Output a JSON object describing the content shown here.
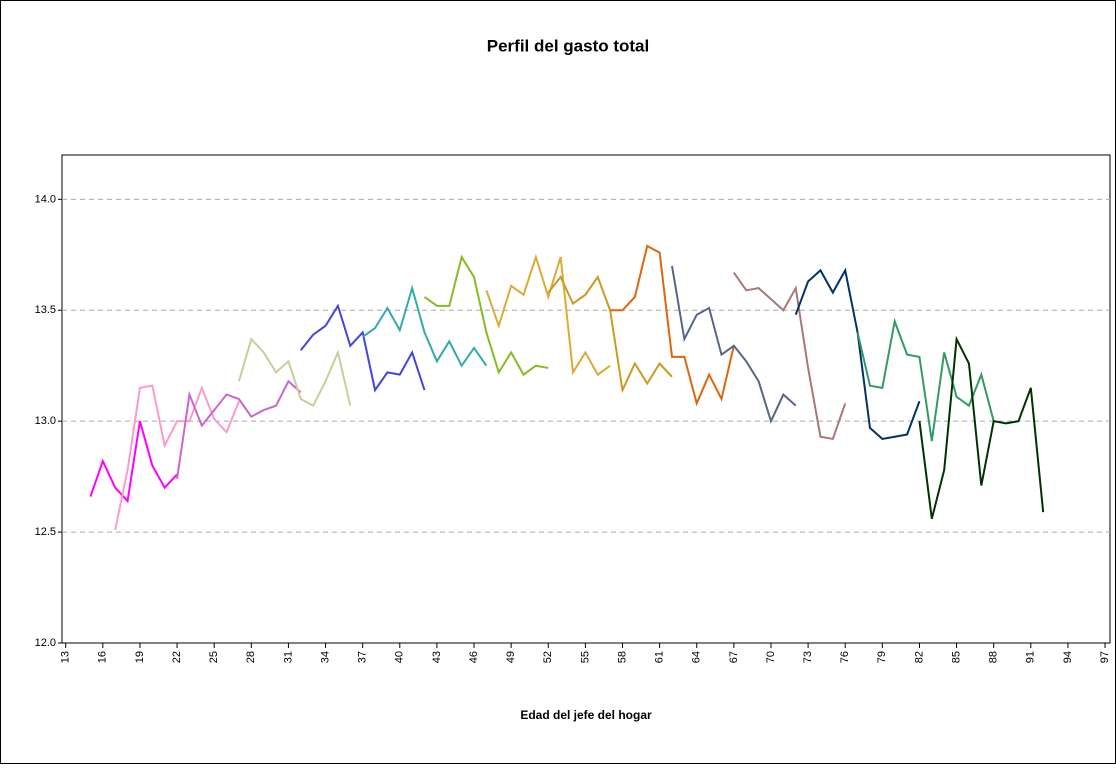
{
  "chart_data": {
    "type": "line",
    "title": "Perfil del gasto total",
    "x_label": "Edad del jefe del hogar",
    "xlim": [
      12.7,
      97.4
    ],
    "xticks": [
      13,
      16,
      19,
      22,
      25,
      28,
      31,
      34,
      37,
      40,
      43,
      46,
      49,
      52,
      55,
      58,
      61,
      64,
      67,
      70,
      73,
      76,
      79,
      82,
      85,
      88,
      91,
      94,
      97
    ],
    "ylim": [
      12.0,
      14.2
    ],
    "yticks": [
      {
        "value": 12,
        "label": "12.0"
      },
      {
        "value": 12.5,
        "label": "12.5"
      },
      {
        "value": 13,
        "label": "13.0"
      },
      {
        "value": 13.5,
        "label": "13.5"
      },
      {
        "value": 14,
        "label": "14.0"
      }
    ],
    "grid": true,
    "series": [
      {
        "color": "#ff00ff",
        "x": [
          15,
          16,
          17,
          18,
          19,
          20,
          21,
          22
        ],
        "values": [
          12.66,
          12.82,
          12.7,
          12.64,
          13.0,
          12.8,
          12.7,
          12.76
        ]
      },
      {
        "color": "#ff99cc",
        "x": [
          17,
          18,
          19,
          20,
          21,
          22,
          23,
          24,
          25,
          26,
          27
        ],
        "values": [
          12.51,
          12.78,
          13.15,
          13.16,
          12.89,
          13.0,
          13.0,
          13.15,
          13.01,
          12.95,
          13.09
        ]
      },
      {
        "color": "#cc66cc",
        "x": [
          22,
          23,
          24,
          25,
          26,
          27,
          28,
          29,
          30,
          31,
          32
        ],
        "values": [
          12.74,
          13.12,
          12.98,
          13.05,
          13.12,
          13.1,
          13.02,
          13.05,
          13.07,
          13.18,
          13.13
        ]
      },
      {
        "color": "#cccc99",
        "x": [
          27,
          28,
          29,
          30,
          31,
          32,
          33,
          34,
          35,
          36
        ],
        "values": [
          13.18,
          13.37,
          13.31,
          13.22,
          13.27,
          13.1,
          13.07,
          13.18,
          13.31,
          13.07
        ]
      },
      {
        "color": "#4444dd",
        "x": [
          32,
          33,
          34,
          35,
          36,
          37,
          38,
          39,
          40,
          41,
          42
        ],
        "values": [
          13.32,
          13.39,
          13.43,
          13.52,
          13.34,
          13.4,
          13.14,
          13.22,
          13.21,
          13.31,
          13.14
        ]
      },
      {
        "color": "#33aaaa",
        "x": [
          37,
          38,
          39,
          40,
          41,
          42,
          43,
          44,
          45,
          46,
          47
        ],
        "values": [
          13.38,
          13.42,
          13.51,
          13.41,
          13.6,
          13.4,
          13.27,
          13.36,
          13.25,
          13.33,
          13.25
        ]
      },
      {
        "color": "#88bb22",
        "x": [
          42,
          43,
          44,
          45,
          46,
          47,
          48,
          49,
          50,
          51,
          52
        ],
        "values": [
          13.56,
          13.52,
          13.52,
          13.74,
          13.65,
          13.4,
          13.22,
          13.31,
          13.21,
          13.25,
          13.24
        ]
      },
      {
        "color": "#ddaa33",
        "x": [
          47,
          48,
          49,
          50,
          51,
          52,
          53,
          54,
          55,
          56,
          57
        ],
        "values": [
          13.59,
          13.43,
          13.61,
          13.57,
          13.74,
          13.56,
          13.74,
          13.22,
          13.31,
          13.21,
          13.25
        ]
      },
      {
        "color": "#cc9922",
        "x": [
          52,
          53,
          54,
          55,
          56,
          57,
          58,
          59,
          60,
          61,
          62
        ],
        "values": [
          13.58,
          13.65,
          13.53,
          13.57,
          13.65,
          13.5,
          13.14,
          13.26,
          13.17,
          13.26,
          13.2
        ]
      },
      {
        "color": "#dd6611",
        "x": [
          57,
          58,
          59,
          60,
          61,
          62,
          63,
          64,
          65,
          66,
          67
        ],
        "values": [
          13.5,
          13.5,
          13.56,
          13.79,
          13.76,
          13.29,
          13.29,
          13.08,
          13.21,
          13.1,
          13.34
        ]
      },
      {
        "color": "#556688",
        "x": [
          62,
          63,
          64,
          65,
          66,
          67,
          68,
          69,
          70,
          71,
          72
        ],
        "values": [
          13.7,
          13.37,
          13.48,
          13.51,
          13.3,
          13.34,
          13.27,
          13.18,
          13.0,
          13.12,
          13.07
        ]
      },
      {
        "color": "#aa7777",
        "x": [
          67,
          68,
          69,
          70,
          71,
          72,
          73,
          74,
          75,
          76
        ],
        "values": [
          13.67,
          13.59,
          13.6,
          13.55,
          13.5,
          13.6,
          13.24,
          12.93,
          12.92,
          13.08
        ]
      },
      {
        "color": "#003366",
        "x": [
          72,
          73,
          74,
          75,
          76,
          77,
          78,
          79,
          80,
          81,
          82
        ],
        "values": [
          13.48,
          13.63,
          13.68,
          13.58,
          13.68,
          13.4,
          12.97,
          12.92,
          12.93,
          12.94,
          13.09
        ]
      },
      {
        "color": "#339966",
        "x": [
          77,
          78,
          79,
          80,
          81,
          82,
          83,
          84,
          85,
          86,
          87,
          88
        ],
        "values": [
          13.4,
          13.16,
          13.15,
          13.45,
          13.3,
          13.29,
          12.91,
          13.31,
          13.11,
          13.07,
          13.21,
          13.0
        ]
      },
      {
        "color": "#003300",
        "x": [
          82,
          83,
          84,
          85,
          86,
          87,
          88,
          89,
          90,
          91,
          92
        ],
        "values": [
          13.0,
          12.56,
          12.78,
          13.37,
          13.26,
          12.71,
          13.0,
          12.99,
          13.0,
          13.15,
          12.59
        ]
      }
    ]
  }
}
